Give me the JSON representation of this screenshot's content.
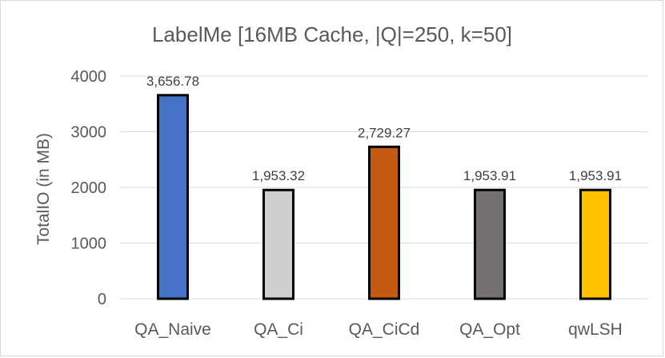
{
  "chart_data": {
    "type": "bar",
    "title": "LabelMe [16MB Cache, |Q|=250, k=50]",
    "xlabel": "",
    "ylabel": "TotalIO (in MB)",
    "ylim": [
      0,
      4000
    ],
    "yticks": [
      0,
      1000,
      2000,
      3000,
      4000
    ],
    "grid": true,
    "categories": [
      "QA_Naive",
      "QA_Ci",
      "QA_CiCd",
      "QA_Opt",
      "qwLSH"
    ],
    "values": [
      3656.78,
      1953.32,
      2729.27,
      1953.91,
      1953.91
    ],
    "data_labels": [
      "3,656.78",
      "1,953.32",
      "2,729.27",
      "1,953.91",
      "1,953.91"
    ],
    "colors": [
      "#4472c4",
      "#d0cece",
      "#c55a11",
      "#767171",
      "#ffc000"
    ]
  }
}
